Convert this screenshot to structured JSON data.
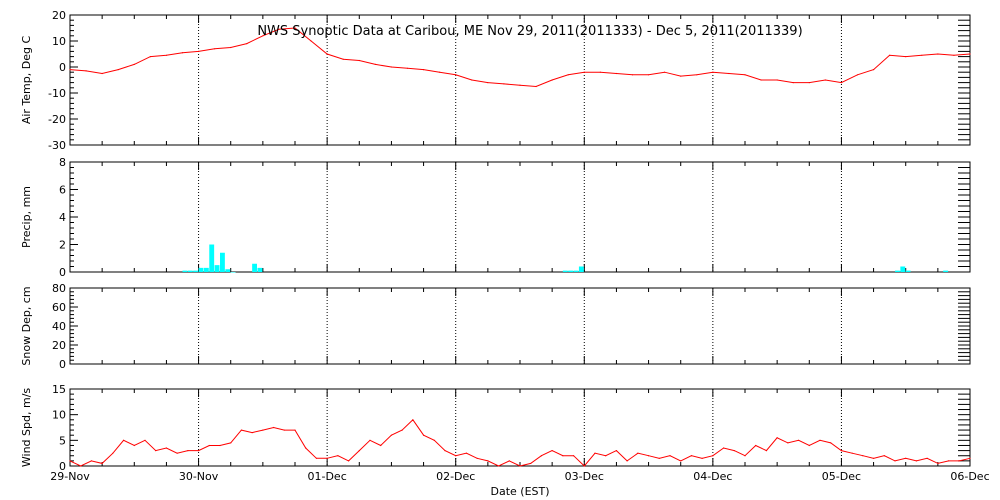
{
  "chart_data": {
    "type": "line",
    "title": "NWS Synoptic Data at Caribou, ME   Nov 29, 2011(2011333) - Dec  5, 2011(2011339)",
    "xlabel": "Date (EST)",
    "x_range": [
      "2011-11-29 00:00",
      "2011-12-06 00:00"
    ],
    "x_ticks": [
      "29-Nov",
      "30-Nov",
      "01-Dec",
      "02-Dec",
      "03-Dec",
      "04-Dec",
      "05-Dec",
      "06-Dec"
    ],
    "panels": [
      {
        "key": "temp",
        "type": "line",
        "ylabel": "Air Temp, Deg C",
        "ylim": [
          -30,
          20
        ],
        "yticks": [
          20,
          10,
          0,
          -10,
          -20,
          -30
        ],
        "color": "#ff0000",
        "series": [
          {
            "x": [
              "2011-11-29 00:00",
              "2011-11-29 03:00",
              "2011-11-29 06:00",
              "2011-11-29 09:00",
              "2011-11-29 12:00",
              "2011-11-29 15:00",
              "2011-11-29 18:00",
              "2011-11-29 21:00",
              "2011-11-30 00:00",
              "2011-11-30 03:00",
              "2011-11-30 06:00",
              "2011-11-30 09:00",
              "2011-11-30 12:00",
              "2011-11-30 15:00",
              "2011-11-30 18:00",
              "2011-11-30 21:00",
              "2011-12-01 00:00",
              "2011-12-01 03:00",
              "2011-12-01 06:00",
              "2011-12-01 09:00",
              "2011-12-01 12:00",
              "2011-12-01 15:00",
              "2011-12-01 18:00",
              "2011-12-01 21:00",
              "2011-12-02 00:00",
              "2011-12-02 03:00",
              "2011-12-02 06:00",
              "2011-12-02 09:00",
              "2011-12-02 12:00",
              "2011-12-02 15:00",
              "2011-12-02 18:00",
              "2011-12-02 21:00",
              "2011-12-03 00:00",
              "2011-12-03 03:00",
              "2011-12-03 06:00",
              "2011-12-03 09:00",
              "2011-12-03 12:00",
              "2011-12-03 15:00",
              "2011-12-03 18:00",
              "2011-12-03 21:00",
              "2011-12-04 00:00",
              "2011-12-04 03:00",
              "2011-12-04 06:00",
              "2011-12-04 09:00",
              "2011-12-04 12:00",
              "2011-12-04 15:00",
              "2011-12-04 18:00",
              "2011-12-04 21:00",
              "2011-12-05 00:00",
              "2011-12-05 03:00",
              "2011-12-05 06:00",
              "2011-12-05 09:00",
              "2011-12-05 12:00",
              "2011-12-05 15:00",
              "2011-12-05 18:00",
              "2011-12-05 21:00",
              "2011-12-06 00:00"
            ],
            "y": [
              -1,
              -1.5,
              -2.5,
              -1,
              1,
              4,
              4.5,
              5.5,
              6,
              7,
              7.5,
              9,
              12,
              14.5,
              15,
              10,
              5,
              3,
              2.5,
              1,
              0,
              -0.5,
              -1,
              -2,
              -3,
              -5,
              -6,
              -6.5,
              -7,
              -7.5,
              -5,
              -3,
              -2,
              -2,
              -2.5,
              -3,
              -3,
              -2,
              -3.5,
              -3,
              -2,
              -2.5,
              -3,
              -5,
              -5,
              -6,
              -6,
              -5,
              -6,
              -3,
              -1,
              4.5,
              4,
              4.5,
              5,
              4.5,
              5
            ]
          }
        ]
      },
      {
        "key": "precip",
        "type": "bar",
        "ylabel": "Precip, mm",
        "ylim": [
          0,
          8
        ],
        "yticks": [
          8,
          6,
          4,
          2,
          0
        ],
        "color": "#00ffff",
        "series": [
          {
            "x": [
              "2011-11-29 21:00",
              "2011-11-29 22:00",
              "2011-11-29 23:00",
              "2011-11-30 00:00",
              "2011-11-30 01:00",
              "2011-11-30 02:00",
              "2011-11-30 03:00",
              "2011-11-30 04:00",
              "2011-11-30 05:00",
              "2011-11-30 06:00",
              "2011-11-30 10:00",
              "2011-11-30 11:00",
              "2011-12-02 20:00",
              "2011-12-02 21:00",
              "2011-12-02 22:00",
              "2011-12-02 23:00",
              "2011-12-05 10:00",
              "2011-12-05 11:00",
              "2011-12-05 12:00",
              "2011-12-05 19:00"
            ],
            "y": [
              0.1,
              0.1,
              0.1,
              0.3,
              0.3,
              2,
              0.5,
              1.4,
              0.2,
              0,
              0.6,
              0.3,
              0.1,
              0.1,
              0.1,
              0.4,
              0.1,
              0.4,
              0.1,
              0.1
            ]
          }
        ]
      },
      {
        "key": "snow",
        "type": "line",
        "ylabel": "Snow Dep, cm",
        "ylim": [
          0,
          80
        ],
        "yticks": [
          80,
          60,
          40,
          20,
          0
        ],
        "color": "#ff0000",
        "series": [
          {
            "x": [],
            "y": []
          }
        ]
      },
      {
        "key": "wind",
        "type": "line",
        "ylabel": "Wind Spd, m/s",
        "ylim": [
          0,
          15
        ],
        "yticks": [
          15,
          10,
          5,
          0
        ],
        "color": "#ff0000",
        "series": [
          {
            "x": [
              "2011-11-29 00:00",
              "2011-11-29 02:00",
              "2011-11-29 04:00",
              "2011-11-29 06:00",
              "2011-11-29 08:00",
              "2011-11-29 10:00",
              "2011-11-29 12:00",
              "2011-11-29 14:00",
              "2011-11-29 16:00",
              "2011-11-29 18:00",
              "2011-11-29 20:00",
              "2011-11-29 22:00",
              "2011-11-30 00:00",
              "2011-11-30 02:00",
              "2011-11-30 04:00",
              "2011-11-30 06:00",
              "2011-11-30 08:00",
              "2011-11-30 10:00",
              "2011-11-30 12:00",
              "2011-11-30 14:00",
              "2011-11-30 16:00",
              "2011-11-30 18:00",
              "2011-11-30 20:00",
              "2011-11-30 22:00",
              "2011-12-01 00:00",
              "2011-12-01 02:00",
              "2011-12-01 04:00",
              "2011-12-01 06:00",
              "2011-12-01 08:00",
              "2011-12-01 10:00",
              "2011-12-01 12:00",
              "2011-12-01 14:00",
              "2011-12-01 16:00",
              "2011-12-01 18:00",
              "2011-12-01 20:00",
              "2011-12-01 22:00",
              "2011-12-02 00:00",
              "2011-12-02 02:00",
              "2011-12-02 04:00",
              "2011-12-02 06:00",
              "2011-12-02 08:00",
              "2011-12-02 10:00",
              "2011-12-02 12:00",
              "2011-12-02 14:00",
              "2011-12-02 16:00",
              "2011-12-02 18:00",
              "2011-12-02 20:00",
              "2011-12-02 22:00",
              "2011-12-03 00:00",
              "2011-12-03 02:00",
              "2011-12-03 04:00",
              "2011-12-03 06:00",
              "2011-12-03 08:00",
              "2011-12-03 10:00",
              "2011-12-03 12:00",
              "2011-12-03 14:00",
              "2011-12-03 16:00",
              "2011-12-03 18:00",
              "2011-12-03 20:00",
              "2011-12-03 22:00",
              "2011-12-04 00:00",
              "2011-12-04 02:00",
              "2011-12-04 04:00",
              "2011-12-04 06:00",
              "2011-12-04 08:00",
              "2011-12-04 10:00",
              "2011-12-04 12:00",
              "2011-12-04 14:00",
              "2011-12-04 16:00",
              "2011-12-04 18:00",
              "2011-12-04 20:00",
              "2011-12-04 22:00",
              "2011-12-05 00:00",
              "2011-12-05 02:00",
              "2011-12-05 04:00",
              "2011-12-05 06:00",
              "2011-12-05 08:00",
              "2011-12-05 10:00",
              "2011-12-05 12:00",
              "2011-12-05 14:00",
              "2011-12-05 16:00",
              "2011-12-05 18:00",
              "2011-12-05 20:00",
              "2011-12-05 22:00",
              "2011-12-06 00:00"
            ],
            "y": [
              1,
              0,
              1,
              0.5,
              2.5,
              5,
              4,
              5,
              3,
              3.5,
              2.5,
              3,
              3,
              4,
              4,
              4.5,
              7,
              6.5,
              7,
              7.5,
              7,
              7,
              3.5,
              1.5,
              1.5,
              2,
              1,
              3,
              5,
              4,
              6,
              7,
              9,
              6,
              5,
              3,
              2,
              2.5,
              1.5,
              1,
              0,
              1,
              0,
              0.5,
              2,
              3,
              2,
              2,
              0,
              2.5,
              2,
              3,
              1,
              2.5,
              2,
              1.5,
              2,
              1,
              2,
              1.5,
              2,
              3.5,
              3,
              2,
              4,
              3,
              5.5,
              4.5,
              5,
              4,
              5,
              4.5,
              3,
              2.5,
              2,
              1.5,
              2,
              1,
              1.5,
              1,
              1.5,
              0.5,
              1,
              1,
              1.5
            ]
          }
        ]
      }
    ]
  }
}
